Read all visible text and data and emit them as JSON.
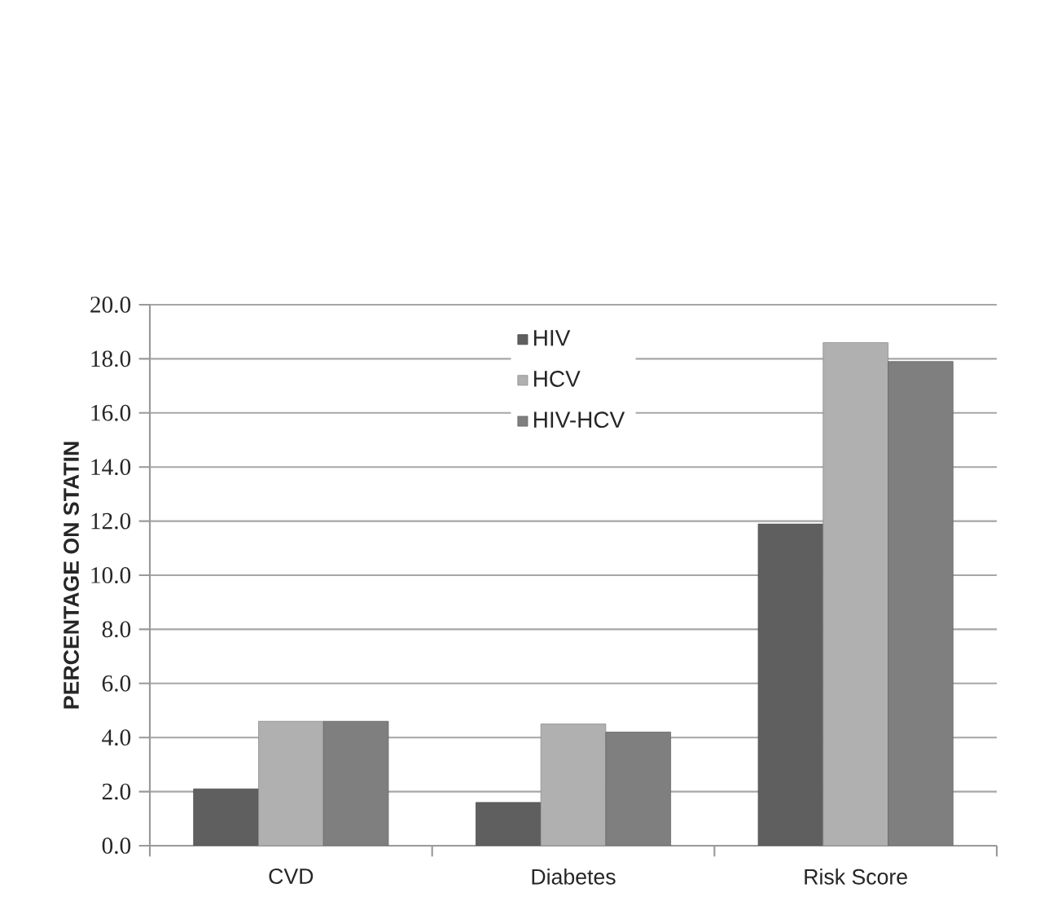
{
  "chart_data": {
    "type": "bar",
    "ylabel": "PERCENTAGE ON STATIN",
    "categories": [
      "CVD",
      "Diabetes",
      "Risk Score"
    ],
    "series": [
      {
        "name": "HIV",
        "color": "#5f5f5f",
        "values": [
          2.1,
          1.6,
          11.9
        ]
      },
      {
        "name": "HCV",
        "color": "#b0b0b0",
        "values": [
          4.6,
          4.5,
          18.6
        ]
      },
      {
        "name": "HIV-HCV",
        "color": "#7f7f7f",
        "values": [
          4.6,
          4.2,
          17.9
        ]
      }
    ],
    "ylim": [
      0,
      20
    ],
    "yticks": [
      {
        "value": 0,
        "label": "0.0"
      },
      {
        "value": 2,
        "label": "2.0"
      },
      {
        "value": 4,
        "label": "4.0"
      },
      {
        "value": 6,
        "label": "6.0"
      },
      {
        "value": 8,
        "label": "8.0"
      },
      {
        "value": 10,
        "label": "10.0"
      },
      {
        "value": 12,
        "label": "12.0"
      },
      {
        "value": 14,
        "label": "14.0"
      },
      {
        "value": 16,
        "label": "16.0"
      },
      {
        "value": 18,
        "label": "18.0"
      },
      {
        "value": 20,
        "label": "20.0"
      }
    ],
    "grid": "y",
    "legend": "top"
  }
}
